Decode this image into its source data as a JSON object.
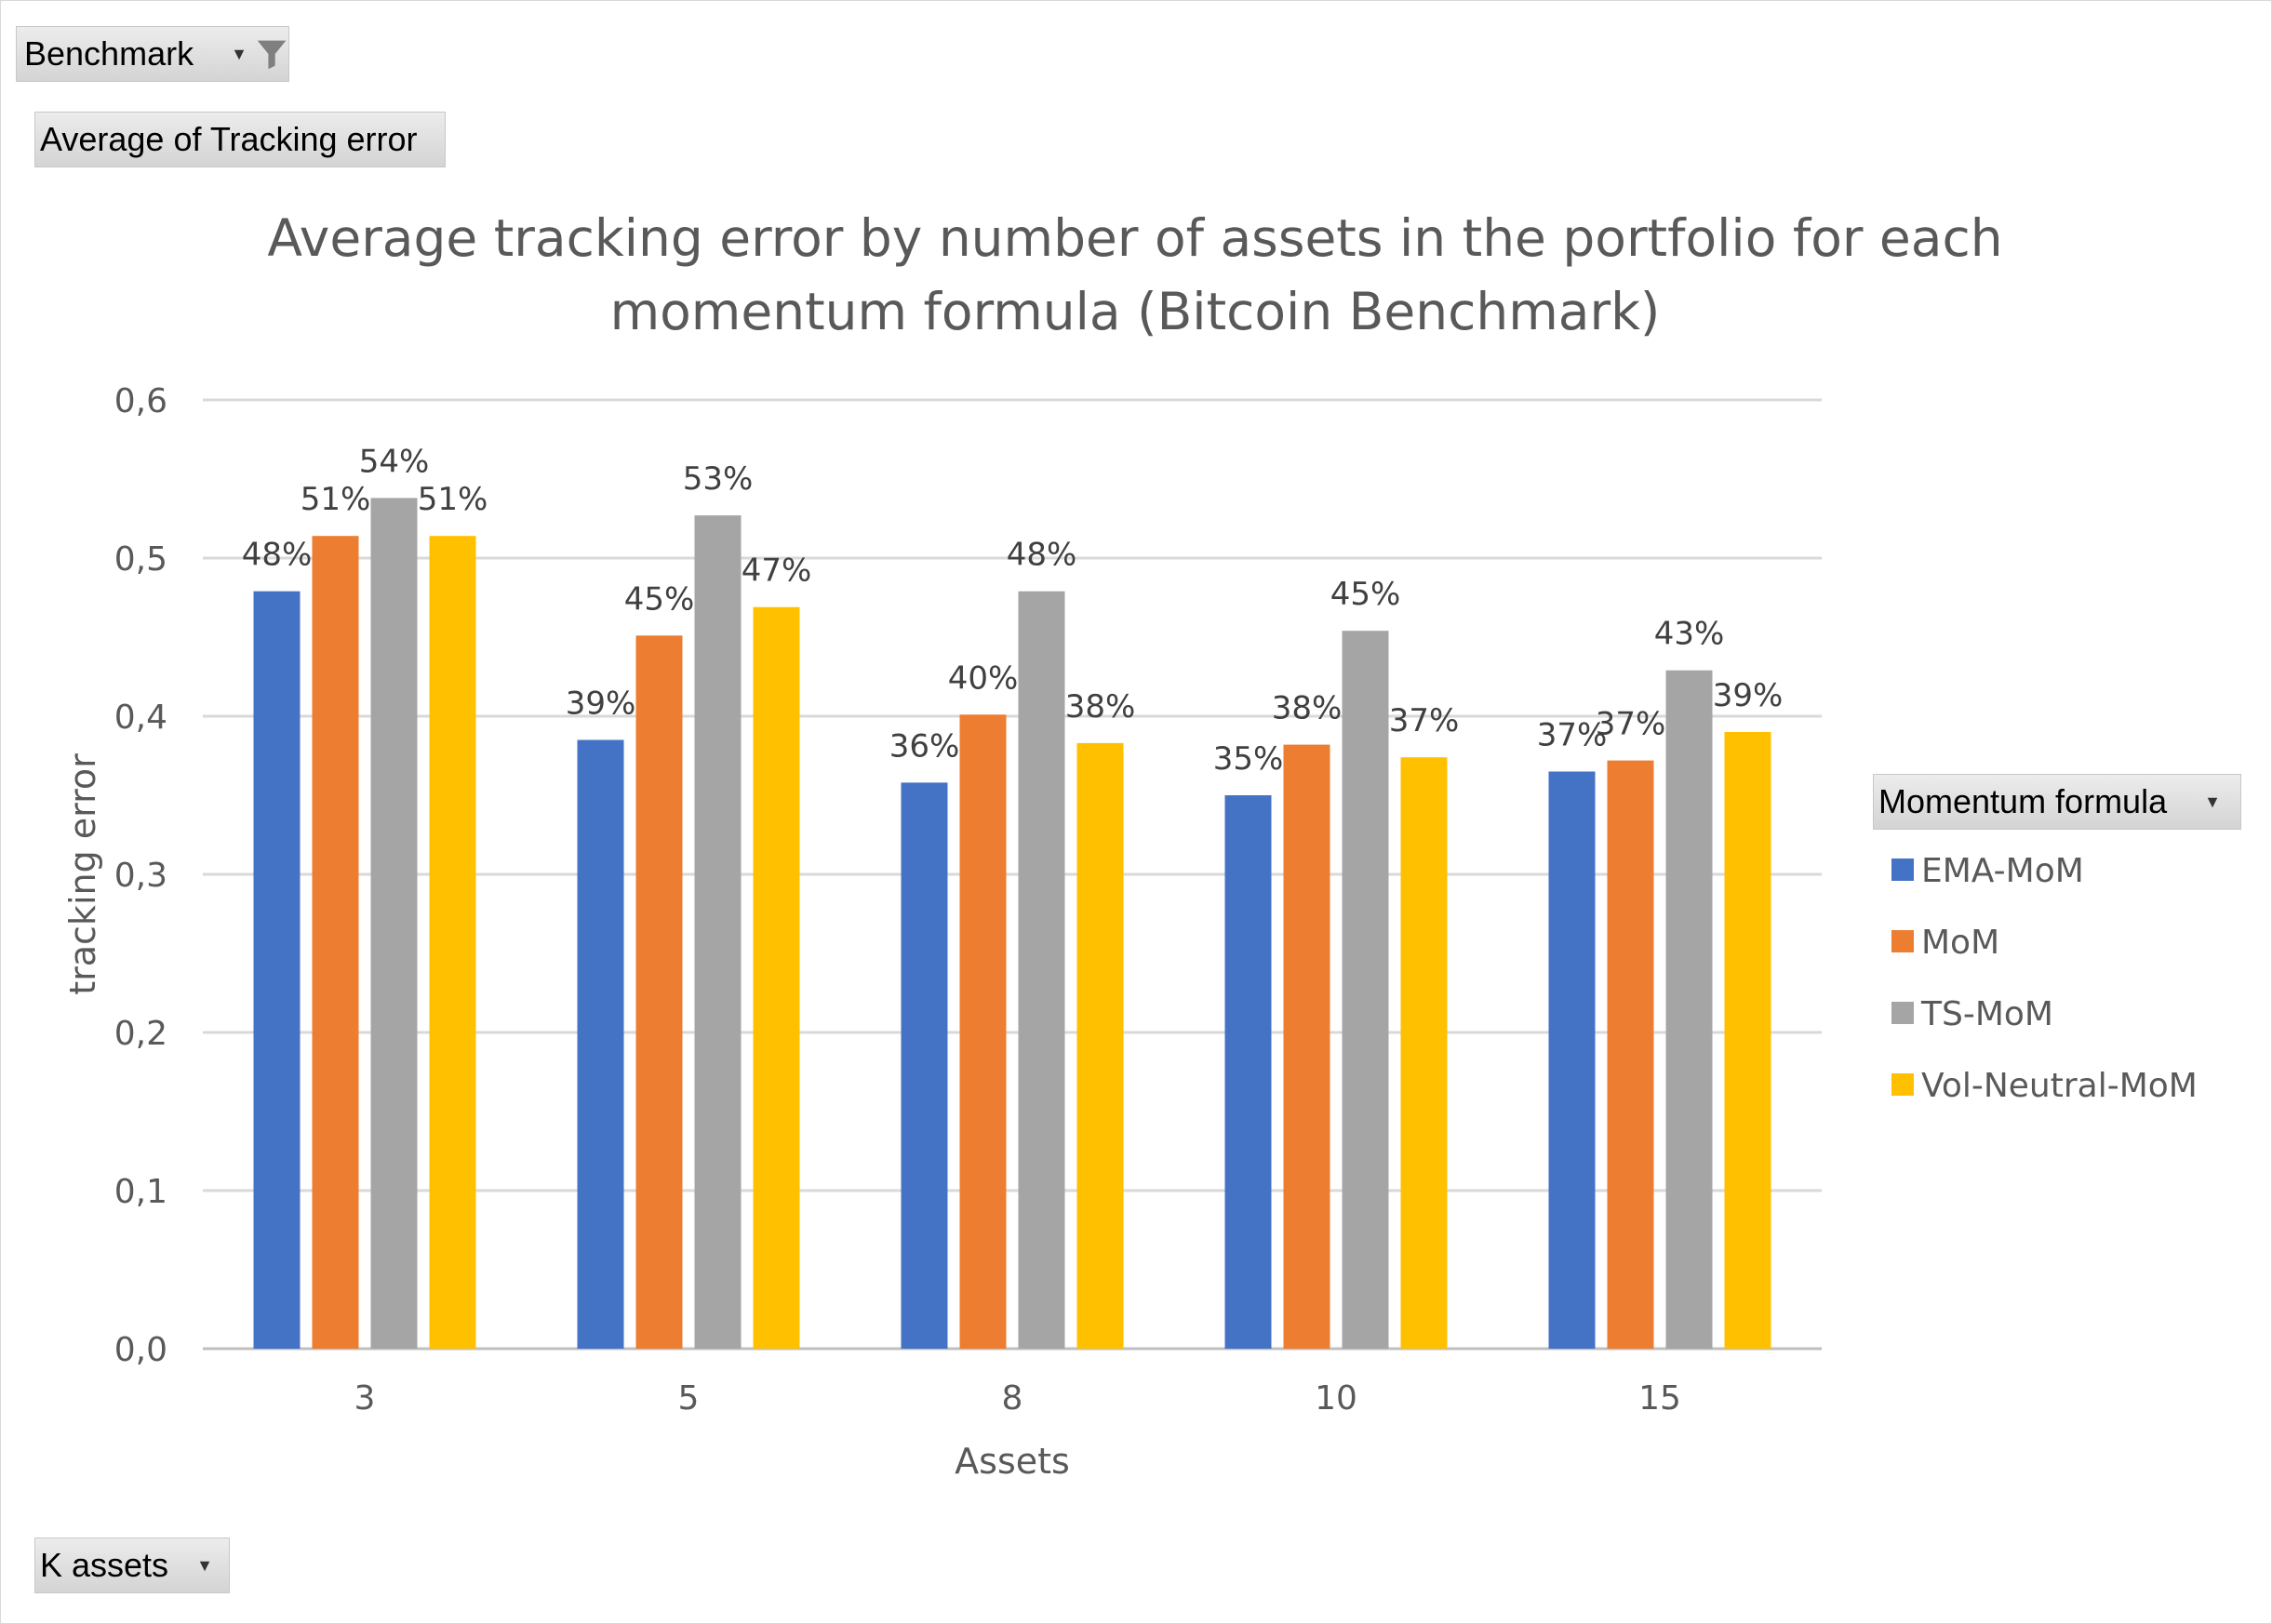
{
  "filters": {
    "benchmark_label": "Benchmark",
    "value_field_label": "Average of Tracking error",
    "axis_field_label": "K assets",
    "legend_field_label": "Momentum formula"
  },
  "chart_data": {
    "type": "bar",
    "title": "Average tracking error by number of assets in the portfolio for each momentum formula (Bitcoin Benchmark)",
    "title_lines": [
      "Average tracking error by number of assets in the portfolio for each",
      "momentum formula (Bitcoin Benchmark)"
    ],
    "xlabel": "Assets",
    "ylabel": "tracking error",
    "categories": [
      "3",
      "5",
      "8",
      "10",
      "15"
    ],
    "ylim": [
      0,
      0.6
    ],
    "yticks": [
      "0,0",
      "0,1",
      "0,2",
      "0,3",
      "0,4",
      "0,5",
      "0,6"
    ],
    "grid": true,
    "legend_position": "right",
    "series": [
      {
        "name": "EMA-MoM",
        "color": "#4472C4",
        "values": [
          0.479,
          0.385,
          0.358,
          0.35,
          0.365
        ],
        "labels": [
          "48%",
          "39%",
          "36%",
          "35%",
          "37%"
        ]
      },
      {
        "name": "MoM",
        "color": "#ED7D31",
        "values": [
          0.514,
          0.451,
          0.401,
          0.382,
          0.372
        ],
        "labels": [
          "51%",
          "45%",
          "40%",
          "38%",
          "37%"
        ]
      },
      {
        "name": "TS-MoM",
        "color": "#A5A5A5",
        "values": [
          0.538,
          0.527,
          0.479,
          0.454,
          0.429
        ],
        "labels": [
          "54%",
          "53%",
          "48%",
          "45%",
          "43%"
        ]
      },
      {
        "name": "Vol-Neutral-MoM",
        "color": "#FFC000",
        "values": [
          0.514,
          0.469,
          0.383,
          0.374,
          0.39
        ],
        "labels": [
          "51%",
          "47%",
          "38%",
          "37%",
          "39%"
        ]
      }
    ]
  }
}
